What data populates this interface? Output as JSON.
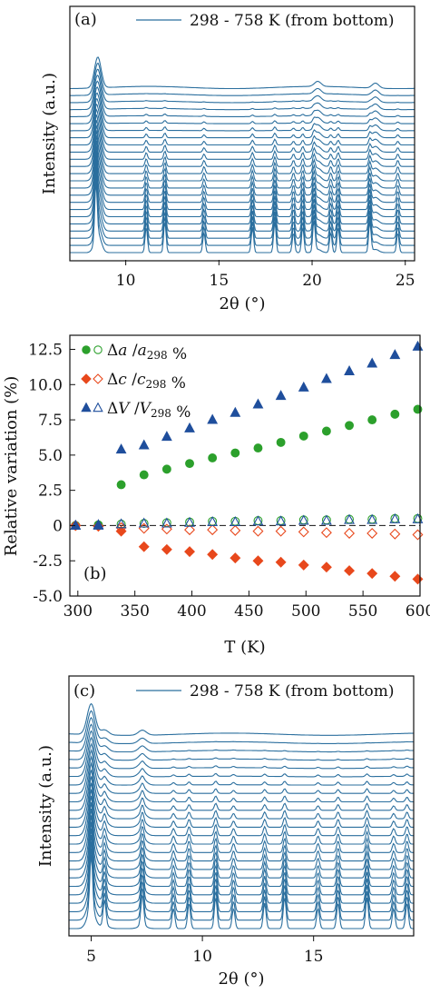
{
  "chart_data": [
    {
      "id": "a",
      "type": "line",
      "panel_label": "(a)",
      "legend": "298 - 758 K (from bottom)",
      "xlabel": "2θ (°)",
      "ylabel": "Intensity (a.u.)",
      "xlim": [
        7,
        25.5
      ],
      "xticks": [
        "10",
        "15",
        "20",
        "25"
      ],
      "color": "#2b6f9e",
      "n_traces": 24,
      "peaks_low_T": [
        8.4,
        11.1,
        12.1,
        14.2,
        16.8,
        18.0,
        19.0,
        19.5,
        20.1,
        21.0,
        21.4,
        23.1,
        24.6
      ],
      "peaks_high_T": [
        8.5,
        20.3,
        23.4
      ]
    },
    {
      "id": "b",
      "type": "scatter",
      "panel_label": "(b)",
      "xlabel": "T (K)",
      "ylabel": "Relative variation (%)",
      "xlim": [
        293,
        600
      ],
      "ylim": [
        -5.0,
        13.5
      ],
      "xticks": [
        300,
        350,
        400,
        450,
        500,
        550,
        600
      ],
      "yticks": [
        -5.0,
        -2.5,
        0,
        2.5,
        5.0,
        7.5,
        10.0,
        12.5
      ],
      "ytick_labels": [
        "-5.0",
        "-2.5",
        "0",
        "2.5",
        "5.0",
        "7.5",
        "10.0",
        "12.5"
      ],
      "legend": [
        {
          "pre": "Δ",
          "v": "a",
          "sep": " /",
          "v2": "a",
          "sub": "298",
          "post": " %"
        },
        {
          "pre": "Δ",
          "v": "c",
          "sep": " /",
          "v2": "c",
          "sub": "298",
          "post": " %"
        },
        {
          "pre": "Δ",
          "v": "V",
          "sep": " /",
          "v2": "V",
          "sub": "298",
          "post": " %"
        }
      ],
      "series": [
        {
          "name": "Δa/a298 %",
          "marker": "circle",
          "color": "#2ca02c",
          "filled": true,
          "x": [
            298,
            318,
            338,
            358,
            378,
            398,
            418,
            438,
            458,
            478,
            498,
            518,
            538,
            558,
            578,
            598
          ],
          "y": [
            0,
            0,
            2.9,
            3.6,
            4.0,
            4.4,
            4.8,
            5.15,
            5.5,
            5.9,
            6.35,
            6.7,
            7.1,
            7.5,
            7.9,
            8.25
          ]
        },
        {
          "name": "Δa/a298 % (open)",
          "marker": "circle",
          "color": "#2ca02c",
          "filled": false,
          "x": [
            298,
            318,
            338,
            358,
            378,
            398,
            418,
            438,
            458,
            478,
            498,
            518,
            538,
            558,
            578,
            598
          ],
          "y": [
            0,
            0.05,
            0.1,
            0.15,
            0.2,
            0.25,
            0.3,
            0.3,
            0.35,
            0.35,
            0.4,
            0.4,
            0.45,
            0.45,
            0.5,
            0.5
          ]
        },
        {
          "name": "Δc/c298 %",
          "marker": "diamond",
          "color": "#e8481c",
          "filled": true,
          "x": [
            298,
            318,
            338,
            358,
            378,
            398,
            418,
            438,
            458,
            478,
            498,
            518,
            538,
            558,
            578,
            598
          ],
          "y": [
            0,
            -0.05,
            -0.4,
            -1.5,
            -1.7,
            -1.85,
            -2.05,
            -2.3,
            -2.5,
            -2.6,
            -2.8,
            -2.95,
            -3.2,
            -3.4,
            -3.6,
            -3.8
          ]
        },
        {
          "name": "Δc/c298 % (open)",
          "marker": "diamond",
          "color": "#e8481c",
          "filled": false,
          "x": [
            298,
            318,
            338,
            358,
            378,
            398,
            418,
            438,
            458,
            478,
            498,
            518,
            538,
            558,
            578,
            598
          ],
          "y": [
            0,
            -0.05,
            -0.15,
            -0.2,
            -0.25,
            -0.3,
            -0.3,
            -0.35,
            -0.4,
            -0.4,
            -0.45,
            -0.5,
            -0.55,
            -0.55,
            -0.6,
            -0.65
          ]
        },
        {
          "name": "ΔV/V298 %",
          "marker": "triangle",
          "color": "#1f4e9c",
          "filled": true,
          "x": [
            298,
            318,
            338,
            358,
            378,
            398,
            418,
            438,
            458,
            478,
            498,
            518,
            538,
            558,
            578,
            598
          ],
          "y": [
            0,
            0,
            5.4,
            5.7,
            6.3,
            6.9,
            7.5,
            8.0,
            8.6,
            9.2,
            9.8,
            10.4,
            10.95,
            11.5,
            12.1,
            12.7
          ]
        },
        {
          "name": "ΔV/V298 % (open)",
          "marker": "triangle",
          "color": "#1f4e9c",
          "filled": false,
          "x": [
            298,
            318,
            338,
            358,
            378,
            398,
            418,
            438,
            458,
            478,
            498,
            518,
            538,
            558,
            578,
            598
          ],
          "y": [
            0,
            0.05,
            0.1,
            0.15,
            0.15,
            0.2,
            0.25,
            0.25,
            0.3,
            0.3,
            0.35,
            0.35,
            0.4,
            0.4,
            0.45,
            0.45
          ]
        }
      ]
    },
    {
      "id": "c",
      "type": "line",
      "panel_label": "(c)",
      "legend": "298 - 758 K (from bottom)",
      "xlabel": "2θ (°)",
      "ylabel": "Intensity (a.u.)",
      "xlim": [
        4,
        19.5
      ],
      "xticks": [
        "5",
        "10",
        "15"
      ],
      "color": "#2b6f9e",
      "n_traces": 24,
      "peaks_low_T": [
        5.0,
        5.6,
        7.3,
        8.7,
        9.4,
        10.6,
        11.4,
        12.8,
        13.7,
        15.2,
        16.1,
        17.4,
        18.6,
        19.2
      ],
      "peaks_high_T": [
        5.0,
        5.6,
        7.3
      ]
    }
  ]
}
